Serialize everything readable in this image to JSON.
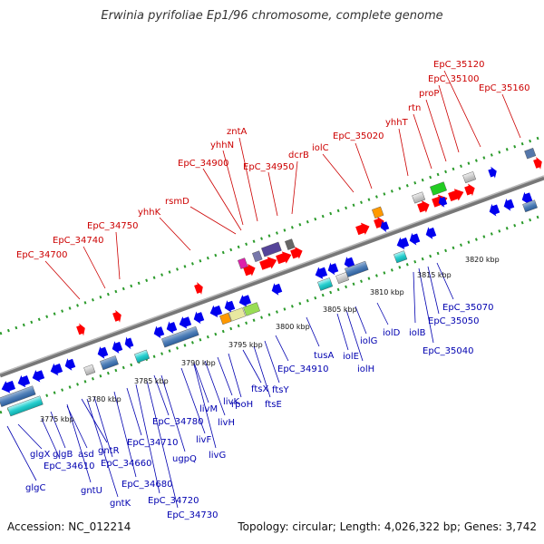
{
  "title": "Erwinia pyrifoliae Ep1/96 chromosome, complete genome",
  "footer": {
    "accession": "Accession: NC_012214",
    "stats": "Topology: circular; Length: 4,026,322 bp; Genes: 3,742"
  },
  "scale_labels": [
    "3775 kbp",
    "3780 kbp",
    "3785 kbp",
    "3790 kbp",
    "3795 kbp",
    "3800 kbp",
    "3805 kbp",
    "3810 kbp",
    "3815 kbp",
    "3820 kbp"
  ],
  "upper_labels": [
    "EpC_34700",
    "EpC_34740",
    "EpC_34750",
    "yhhK",
    "rsmD",
    "EpC_34900",
    "yhhN",
    "zntA",
    "EpC_34950",
    "dcrB",
    "iolC",
    "EpC_35020",
    "yhhT",
    "rtn",
    "proP",
    "EpC_35100",
    "EpC_35120",
    "EpC_35160"
  ],
  "lower_labels": [
    "glgC",
    "glgX",
    "EpC_34610",
    "glgB",
    "asd",
    "gntU",
    "gntK",
    "gntR",
    "EpC_34660",
    "EpC_34680",
    "EpC_34710",
    "EpC_34720",
    "EpC_34730",
    "EpC_34780",
    "ugpQ",
    "livF",
    "livG",
    "livM",
    "livH",
    "livK",
    "rpoH",
    "ftsX",
    "ftsE",
    "ftsY",
    "EpC_34910",
    "tusA",
    "iolE",
    "iolH",
    "iolG",
    "iolD",
    "iolB",
    "EpC_35040",
    "EpC_35050",
    "EpC_35070"
  ],
  "colors": {
    "forward": "#ff0000",
    "reverse": "#0000ee",
    "upper_label": "#cc0000",
    "lower_label": "#0000b0",
    "dots": "#2a9a2a",
    "backbone": "#888888"
  }
}
